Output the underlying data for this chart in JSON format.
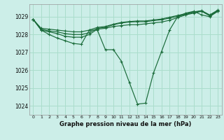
{
  "background_color": "#cceee8",
  "grid_color": "#aaddcc",
  "line_color": "#1a6b3a",
  "title": "Graphe pression niveau de la mer (hPa)",
  "ylim": [
    1023.5,
    1029.7
  ],
  "xlim": [
    -0.5,
    23.5
  ],
  "yticks": [
    1024,
    1025,
    1026,
    1027,
    1028,
    1029
  ],
  "xticks": [
    0,
    1,
    2,
    3,
    4,
    5,
    6,
    7,
    8,
    9,
    10,
    11,
    12,
    13,
    14,
    15,
    16,
    17,
    18,
    19,
    20,
    21,
    22,
    23
  ],
  "series": [
    [
      1028.85,
      1028.25,
      1028.0,
      1027.8,
      1027.65,
      1027.5,
      1027.45,
      1028.25,
      1028.25,
      1027.15,
      1027.15,
      1026.5,
      1025.3,
      1024.1,
      1024.15,
      1025.85,
      1027.05,
      1028.25,
      1029.0,
      1029.2,
      1029.3,
      1029.1,
      1029.0,
      1029.3
    ],
    [
      1028.85,
      1028.25,
      1028.15,
      1028.05,
      1027.9,
      1027.85,
      1027.85,
      1028.0,
      1028.3,
      1028.35,
      1028.45,
      1028.5,
      1028.55,
      1028.55,
      1028.6,
      1028.65,
      1028.7,
      1028.8,
      1028.95,
      1029.1,
      1029.2,
      1029.3,
      1029.05,
      1029.3
    ],
    [
      1028.85,
      1028.3,
      1028.2,
      1028.15,
      1028.05,
      1028.0,
      1028.0,
      1028.1,
      1028.35,
      1028.4,
      1028.55,
      1028.65,
      1028.7,
      1028.72,
      1028.72,
      1028.78,
      1028.83,
      1028.92,
      1029.02,
      1029.12,
      1029.25,
      1029.32,
      1029.07,
      1029.35
    ],
    [
      1028.85,
      1028.35,
      1028.3,
      1028.25,
      1028.2,
      1028.15,
      1028.15,
      1028.25,
      1028.4,
      1028.45,
      1028.58,
      1028.68,
      1028.73,
      1028.76,
      1028.76,
      1028.82,
      1028.87,
      1028.97,
      1029.07,
      1029.17,
      1029.27,
      1029.34,
      1029.1,
      1029.37
    ]
  ]
}
